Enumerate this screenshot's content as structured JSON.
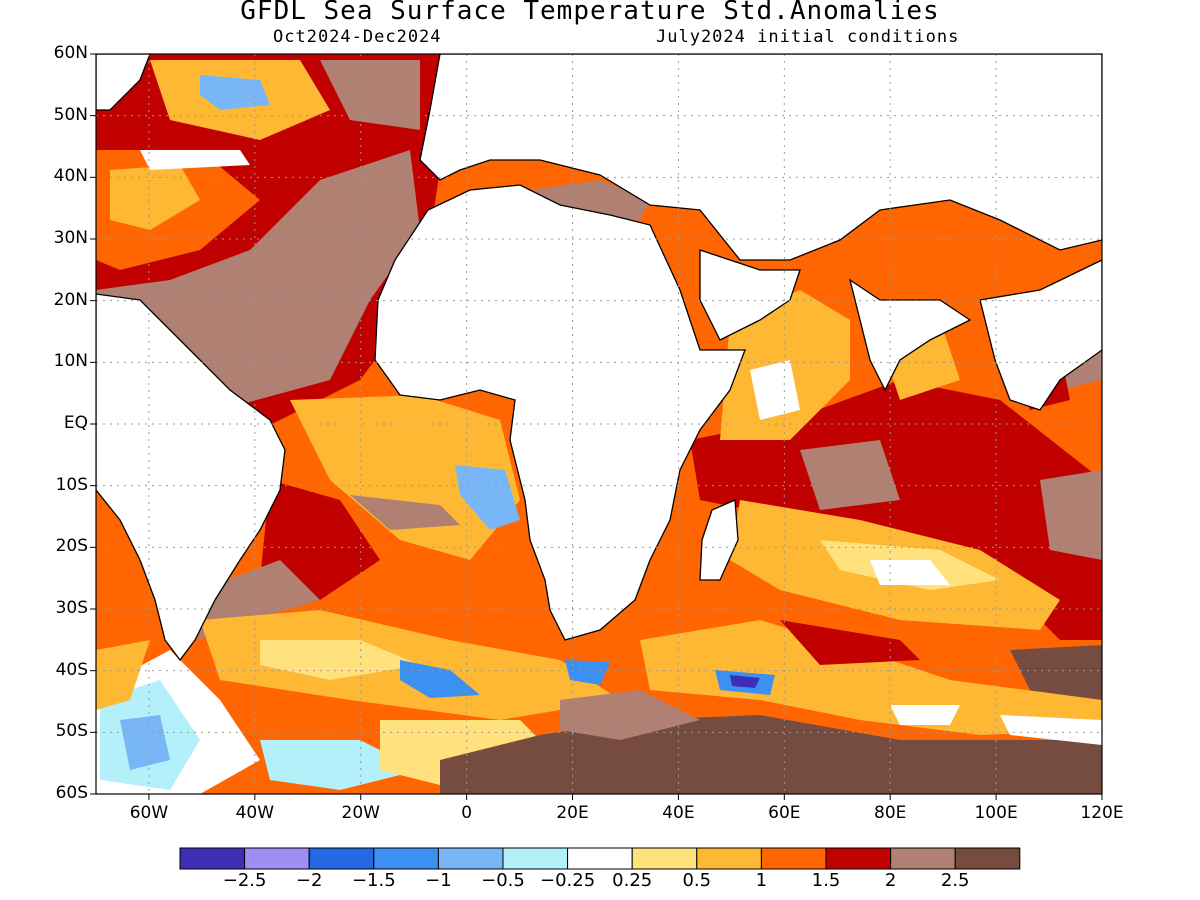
{
  "title": "GFDL Sea Surface Temperature Std.Anomalies",
  "subtitle_left": "Oct2024-Dec2024",
  "subtitle_right": "July2024 initial conditions",
  "map": {
    "lon_range": [
      -70,
      120
    ],
    "lat_range": [
      -60,
      60
    ],
    "lat_labels": [
      "60N",
      "50N",
      "40N",
      "30N",
      "20N",
      "10N",
      "EQ",
      "10S",
      "20S",
      "30S",
      "40S",
      "50S",
      "60S"
    ],
    "lat_values": [
      60,
      50,
      40,
      30,
      20,
      10,
      0,
      -10,
      -20,
      -30,
      -40,
      -50,
      -60
    ],
    "lon_labels": [
      "60W",
      "40W",
      "20W",
      "0",
      "20E",
      "40E",
      "60E",
      "80E",
      "100E",
      "120E"
    ],
    "lon_values": [
      -60,
      -40,
      -20,
      0,
      20,
      40,
      60,
      80,
      100,
      120
    ],
    "grid": true
  },
  "colorbar": {
    "colors": [
      "#3c2fb5",
      "#9f8ff5",
      "#2468e6",
      "#3b90f2",
      "#78b6f7",
      "#b3f0fa",
      "#ffffff",
      "#ffe27e",
      "#ffb833",
      "#ff6500",
      "#c10000",
      "#b08072",
      "#774c40"
    ],
    "labels": [
      "-2.5",
      "-2",
      "-1.5",
      "-1",
      "-0.5",
      "-0.25",
      "0.25",
      "0.5",
      "1",
      "1.5",
      "2",
      "2.5"
    ]
  }
}
